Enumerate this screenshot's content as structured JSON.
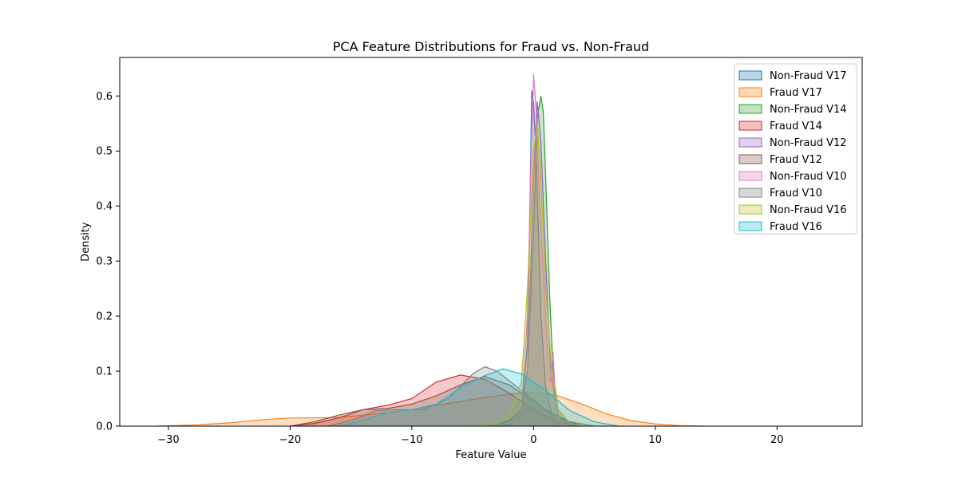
{
  "chart_data": {
    "type": "area",
    "title": "PCA Feature Distributions for Fraud vs. Non-Fraud",
    "xlabel": "Feature Value",
    "ylabel": "Density",
    "xlim": [
      -34,
      27
    ],
    "ylim": [
      0,
      0.67
    ],
    "xticks": [
      -30,
      -20,
      -10,
      0,
      10,
      20
    ],
    "xtick_labels": [
      "−30",
      "−20",
      "−10",
      "0",
      "10",
      "20"
    ],
    "yticks": [
      0.0,
      0.1,
      0.2,
      0.3,
      0.4,
      0.5,
      0.6
    ],
    "ytick_labels": [
      "0.0",
      "0.1",
      "0.2",
      "0.3",
      "0.4",
      "0.5",
      "0.6"
    ],
    "grid": false,
    "legend_position": "top-right",
    "series": [
      {
        "name": "Non-Fraud V17",
        "color": "#1f77b4",
        "x": [
          -3,
          -2,
          -1,
          -0.5,
          -0.3,
          -0.15,
          0,
          0.2,
          0.4,
          0.6,
          1,
          1.5,
          2,
          3
        ],
        "y": [
          0,
          0.003,
          0.02,
          0.15,
          0.4,
          0.61,
          0.585,
          0.5,
          0.35,
          0.2,
          0.07,
          0.02,
          0.005,
          0
        ]
      },
      {
        "name": "Fraud V17",
        "color": "#ff7f0e",
        "x": [
          -31,
          -28,
          -25,
          -22,
          -20,
          -18,
          -16,
          -14,
          -12,
          -10,
          -8,
          -6,
          -4,
          -2,
          0,
          2,
          4,
          6,
          8,
          10,
          12,
          14
        ],
        "y": [
          0,
          0.002,
          0.006,
          0.012,
          0.015,
          0.015,
          0.016,
          0.02,
          0.025,
          0.03,
          0.038,
          0.045,
          0.052,
          0.058,
          0.062,
          0.055,
          0.04,
          0.022,
          0.01,
          0.004,
          0.001,
          0
        ]
      },
      {
        "name": "Non-Fraud V14",
        "color": "#2ca02c",
        "x": [
          -4,
          -3,
          -2,
          -1,
          -0.5,
          0,
          0.3,
          0.6,
          0.8,
          1,
          1.3,
          1.6,
          2,
          3,
          4
        ],
        "y": [
          0,
          0.003,
          0.008,
          0.03,
          0.1,
          0.35,
          0.56,
          0.6,
          0.57,
          0.45,
          0.25,
          0.1,
          0.03,
          0.005,
          0
        ]
      },
      {
        "name": "Fraud V14",
        "color": "#d62728",
        "x": [
          -20,
          -18,
          -16,
          -14,
          -12,
          -10,
          -8,
          -6,
          -4,
          -2,
          0,
          2,
          4
        ],
        "y": [
          0,
          0.005,
          0.015,
          0.03,
          0.038,
          0.05,
          0.08,
          0.093,
          0.085,
          0.06,
          0.03,
          0.008,
          0
        ]
      },
      {
        "name": "Non-Fraud V12",
        "color": "#9467bd",
        "x": [
          -5,
          -3,
          -2,
          -1,
          -0.5,
          0,
          0.3,
          0.6,
          1,
          1.4,
          2,
          3,
          4
        ],
        "y": [
          0,
          0.004,
          0.01,
          0.03,
          0.1,
          0.45,
          0.59,
          0.52,
          0.3,
          0.1,
          0.02,
          0.003,
          0
        ]
      },
      {
        "name": "Fraud V12",
        "color": "#8c564b",
        "x": [
          -20,
          -18,
          -16,
          -14,
          -12,
          -10,
          -8,
          -6,
          -4,
          -2,
          0,
          2,
          4
        ],
        "y": [
          0,
          0.008,
          0.02,
          0.03,
          0.032,
          0.04,
          0.055,
          0.075,
          0.09,
          0.075,
          0.045,
          0.015,
          0
        ]
      },
      {
        "name": "Non-Fraud V10",
        "color": "#e377c2",
        "x": [
          -3,
          -1.5,
          -1,
          -0.5,
          -0.2,
          0,
          0.2,
          0.5,
          0.8,
          1,
          1.2,
          1.4,
          1.6,
          1.8,
          2.2,
          3
        ],
        "y": [
          0,
          0.01,
          0.03,
          0.2,
          0.5,
          0.64,
          0.58,
          0.4,
          0.28,
          0.2,
          0.1,
          0.08,
          0.135,
          0.05,
          0.005,
          0
        ]
      },
      {
        "name": "Fraud V10",
        "color": "#7f7f7f",
        "x": [
          -17,
          -15,
          -13,
          -11,
          -9,
          -7,
          -5,
          -4,
          -3,
          -1,
          1,
          3,
          5
        ],
        "y": [
          0,
          0.01,
          0.028,
          0.03,
          0.03,
          0.05,
          0.095,
          0.108,
          0.1,
          0.065,
          0.03,
          0.008,
          0
        ]
      },
      {
        "name": "Non-Fraud V16",
        "color": "#bcbd22",
        "x": [
          -5,
          -3,
          -2,
          -1,
          -0.5,
          0,
          0.3,
          0.6,
          1,
          1.5,
          2,
          3,
          4
        ],
        "y": [
          0,
          0.004,
          0.02,
          0.08,
          0.25,
          0.5,
          0.55,
          0.45,
          0.25,
          0.1,
          0.03,
          0.005,
          0
        ]
      },
      {
        "name": "Fraud V16",
        "color": "#17becf",
        "x": [
          -16,
          -14,
          -12,
          -10,
          -8,
          -6,
          -4,
          -2.5,
          -1,
          1,
          3,
          5,
          7
        ],
        "y": [
          0,
          0.01,
          0.025,
          0.03,
          0.04,
          0.07,
          0.092,
          0.104,
          0.095,
          0.065,
          0.028,
          0.008,
          0
        ]
      }
    ]
  }
}
